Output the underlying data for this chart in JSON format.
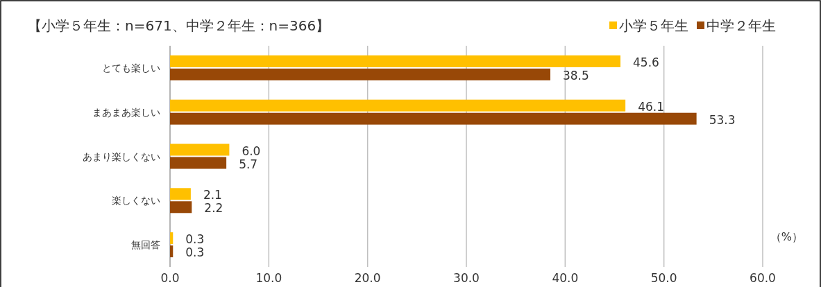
{
  "chart_data": {
    "type": "bar",
    "orientation": "horizontal",
    "title": "【小学５年生：n=671、中学２年生：n=366】",
    "categories": [
      "とても楽しい",
      "まあまあ楽しい",
      "あまり楽しくない",
      "楽しくない",
      "無回答"
    ],
    "series": [
      {
        "name": "小学５年生",
        "color": "#ffc000",
        "values": [
          45.6,
          46.1,
          6.0,
          2.1,
          0.3
        ],
        "value_labels": [
          "45.6",
          "46.1",
          "6.0",
          "2.1",
          "0.3"
        ]
      },
      {
        "name": "中学２年生",
        "color": "#984807",
        "values": [
          38.5,
          53.3,
          5.7,
          2.2,
          0.3
        ],
        "value_labels": [
          "38.5",
          "53.3",
          "5.7",
          "2.2",
          "0.3"
        ]
      }
    ],
    "xlim": [
      0,
      60
    ],
    "xticks": [
      {
        "value": 0,
        "label": "0.0"
      },
      {
        "value": 10,
        "label": "10.0"
      },
      {
        "value": 20,
        "label": "20.0"
      },
      {
        "value": 30,
        "label": "30.0"
      },
      {
        "value": 40,
        "label": "40.0"
      },
      {
        "value": 50,
        "label": "50.0"
      },
      {
        "value": 60,
        "label": "60.0"
      }
    ],
    "grid": "x",
    "legend": "top right",
    "annotations": [
      "（%）"
    ]
  }
}
